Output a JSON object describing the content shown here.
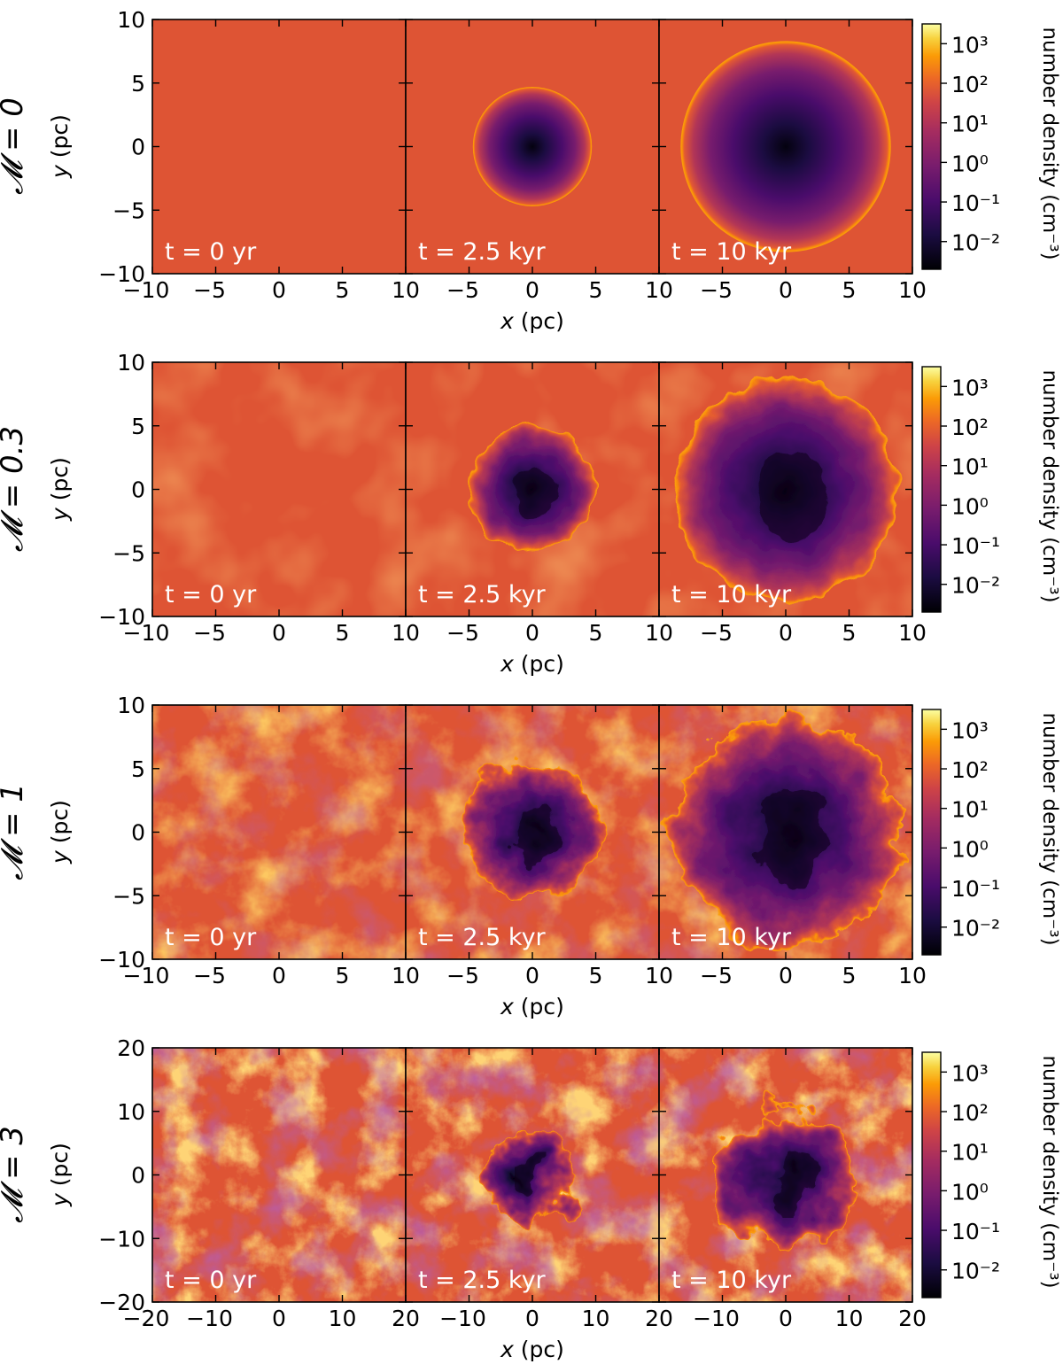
{
  "colormap": {
    "name": "inferno",
    "dark": "#000004",
    "purple": "#3b0f70",
    "magenta": "#8c2981",
    "red": "#dd513a",
    "orange": "#f98e09",
    "yellow": "#fcffa4"
  },
  "chart_data": [
    {
      "type": "heatmap",
      "row_label": "𝓜 = 0",
      "xlabel_var": "x",
      "xlabel_unit": "(pc)",
      "ylabel_var": "y",
      "ylabel_unit": "(pc)",
      "xlim": [
        -10,
        10
      ],
      "ylim": [
        -10,
        10
      ],
      "xticks": [
        -10,
        -5,
        0,
        5,
        10
      ],
      "yticks": [
        -10,
        -5,
        0,
        5,
        10
      ],
      "x_tick_labels": [
        "−10",
        "−5",
        "0",
        "5",
        "10",
        "−5",
        "0",
        "5",
        "10",
        "−5",
        "0",
        "5",
        "10"
      ],
      "y_tick_labels": [
        "10",
        "5",
        "0",
        "−5",
        "−10"
      ],
      "panels": [
        {
          "label": "t = 0 yr",
          "time_kyr": 0,
          "bubble_radius_pc": 0,
          "ambient_log_n": 1.0,
          "turbulence": 0
        },
        {
          "label": "t = 2.5 kyr",
          "time_kyr": 2.5,
          "bubble_radius_pc": 4.7,
          "ambient_log_n": 1.0,
          "turbulence": 0
        },
        {
          "label": "t = 10 kyr",
          "time_kyr": 10,
          "bubble_radius_pc": 8.3,
          "ambient_log_n": 1.0,
          "turbulence": 0
        }
      ],
      "colorbar": {
        "label": "number density (cm⁻³)",
        "scale": "log",
        "range_log": [
          -2.7,
          3.5
        ],
        "ticks": [
          "10⁻²",
          "10⁻¹",
          "10⁰",
          "10¹",
          "10²",
          "10³"
        ],
        "tick_exponents": [
          -2,
          -1,
          0,
          1,
          2,
          3
        ]
      }
    },
    {
      "type": "heatmap",
      "row_label": "𝓜 = 0.3",
      "xlabel_var": "x",
      "xlabel_unit": "(pc)",
      "ylabel_var": "y",
      "ylabel_unit": "(pc)",
      "xlim": [
        -10,
        10
      ],
      "ylim": [
        -10,
        10
      ],
      "xticks": [
        -10,
        -5,
        0,
        5,
        10
      ],
      "yticks": [
        -10,
        -5,
        0,
        5,
        10
      ],
      "x_tick_labels": [
        "−10",
        "−5",
        "0",
        "5",
        "10",
        "−5",
        "0",
        "5",
        "10",
        "−5",
        "0",
        "5",
        "10"
      ],
      "y_tick_labels": [
        "10",
        "5",
        "0",
        "−5",
        "−10"
      ],
      "panels": [
        {
          "label": "t = 0 yr",
          "time_kyr": 0,
          "bubble_radius_pc": 0,
          "ambient_log_n": 1.0,
          "turbulence": 0.3
        },
        {
          "label": "t = 2.5 kyr",
          "time_kyr": 2.5,
          "bubble_radius_pc": 5.0,
          "ambient_log_n": 1.0,
          "turbulence": 0.3
        },
        {
          "label": "t = 10 kyr",
          "time_kyr": 10,
          "bubble_radius_pc": 8.8,
          "ambient_log_n": 1.0,
          "turbulence": 0.3
        }
      ],
      "colorbar": {
        "label": "number density (cm⁻³)",
        "scale": "log",
        "range_log": [
          -2.7,
          3.5
        ],
        "ticks": [
          "10⁻²",
          "10⁻¹",
          "10⁰",
          "10¹",
          "10²",
          "10³"
        ],
        "tick_exponents": [
          -2,
          -1,
          0,
          1,
          2,
          3
        ]
      }
    },
    {
      "type": "heatmap",
      "row_label": "𝓜 = 1",
      "xlabel_var": "x",
      "xlabel_unit": "(pc)",
      "ylabel_var": "y",
      "ylabel_unit": "(pc)",
      "xlim": [
        -10,
        10
      ],
      "ylim": [
        -10,
        10
      ],
      "xticks": [
        -10,
        -5,
        0,
        5,
        10
      ],
      "yticks": [
        -10,
        -5,
        0,
        5,
        10
      ],
      "x_tick_labels": [
        "−10",
        "−5",
        "0",
        "5",
        "10",
        "−5",
        "0",
        "5",
        "10",
        "−5",
        "0",
        "5",
        "10"
      ],
      "y_tick_labels": [
        "10",
        "5",
        "0",
        "−5",
        "−10"
      ],
      "panels": [
        {
          "label": "t = 0 yr",
          "time_kyr": 0,
          "bubble_radius_pc": 0,
          "ambient_log_n": 1.0,
          "turbulence": 1
        },
        {
          "label": "t = 2.5 kyr",
          "time_kyr": 2.5,
          "bubble_radius_pc": 5.5,
          "ambient_log_n": 1.0,
          "turbulence": 1
        },
        {
          "label": "t = 10 kyr",
          "time_kyr": 10,
          "bubble_radius_pc": 9.0,
          "ambient_log_n": 1.0,
          "turbulence": 1
        }
      ],
      "colorbar": {
        "label": "number density (cm⁻³)",
        "scale": "log",
        "range_log": [
          -2.7,
          3.5
        ],
        "ticks": [
          "10⁻²",
          "10⁻¹",
          "10⁰",
          "10¹",
          "10²",
          "10³"
        ],
        "tick_exponents": [
          -2,
          -1,
          0,
          1,
          2,
          3
        ]
      }
    },
    {
      "type": "heatmap",
      "row_label": "𝓜 = 3",
      "xlabel_var": "x",
      "xlabel_unit": "(pc)",
      "ylabel_var": "y",
      "ylabel_unit": "(pc)",
      "xlim": [
        -20,
        20
      ],
      "ylim": [
        -20,
        20
      ],
      "xticks": [
        -20,
        -10,
        0,
        10,
        20
      ],
      "yticks": [
        -20,
        -10,
        0,
        10,
        20
      ],
      "x_tick_labels": [
        "−20",
        "−10",
        "0",
        "10",
        "20",
        "−10",
        "0",
        "10",
        "20",
        "−10",
        "0",
        "10",
        "20"
      ],
      "y_tick_labels": [
        "20",
        "10",
        "0",
        "−10",
        "−20"
      ],
      "panels": [
        {
          "label": "t = 0 yr",
          "time_kyr": 0,
          "bubble_radius_pc": 0,
          "ambient_log_n": 1.0,
          "turbulence": 3
        },
        {
          "label": "t = 2.5 kyr",
          "time_kyr": 2.5,
          "bubble_radius_pc": 7,
          "ambient_log_n": 1.0,
          "turbulence": 3
        },
        {
          "label": "t = 10 kyr",
          "time_kyr": 10,
          "bubble_radius_pc": 11,
          "ambient_log_n": 1.0,
          "turbulence": 3
        }
      ],
      "colorbar": {
        "label": "number density (cm⁻³)",
        "scale": "log",
        "range_log": [
          -2.7,
          3.5
        ],
        "ticks": [
          "10⁻²",
          "10⁻¹",
          "10⁰",
          "10¹",
          "10²",
          "10³"
        ],
        "tick_exponents": [
          -2,
          -1,
          0,
          1,
          2,
          3
        ]
      }
    }
  ]
}
